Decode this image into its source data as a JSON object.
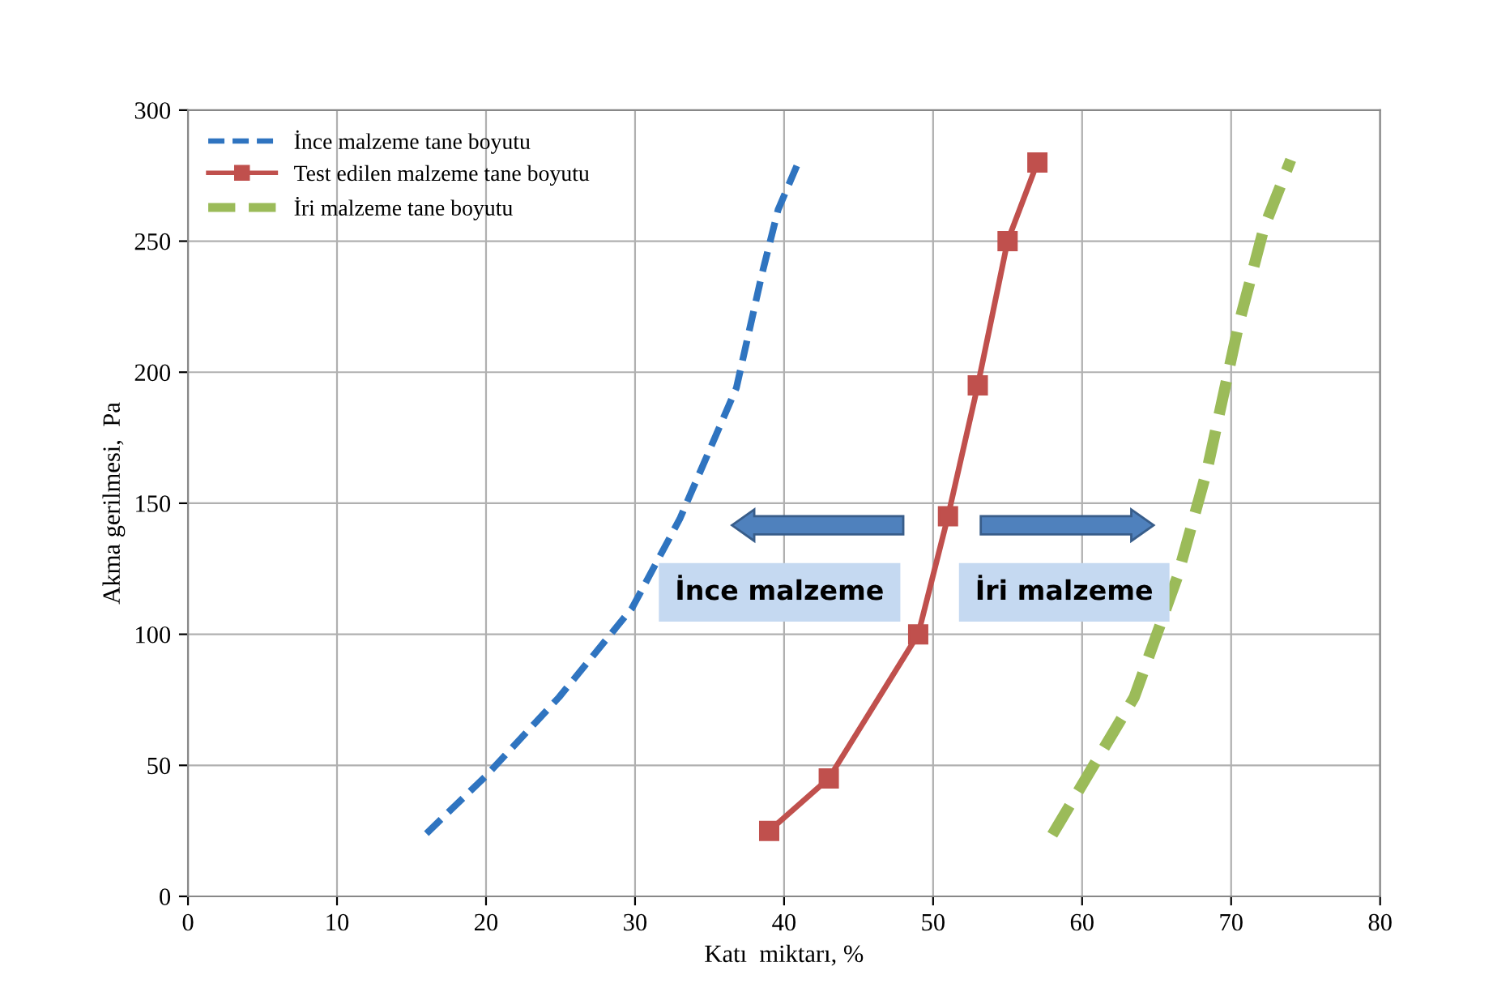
{
  "chart_data": {
    "type": "line",
    "xlabel": "Katı  miktarı, %",
    "ylabel": "Akma gerilmesi,  Pa",
    "xlim": [
      0,
      80
    ],
    "ylim": [
      0,
      300
    ],
    "xticks": [
      0,
      10,
      20,
      30,
      40,
      50,
      60,
      70,
      80
    ],
    "yticks": [
      0,
      50,
      100,
      150,
      200,
      250,
      300
    ],
    "grid": true,
    "legend": "top left",
    "series": [
      {
        "name": "İnce malzeme tane boyutu",
        "color": "#2f74c0",
        "line_style": "dashed",
        "marker": "none",
        "x": [
          16,
          20,
          24.9,
          29.8,
          33,
          36.8,
          38.5,
          39.6,
          41.1
        ],
        "values": [
          24,
          46,
          76,
          110,
          144,
          194,
          237,
          262,
          282
        ]
      },
      {
        "name": "Test edilen malzeme tane boyutu",
        "color": "#c0504d",
        "line_style": "solid",
        "marker": "square",
        "x": [
          39,
          43,
          49,
          51,
          53,
          55,
          57
        ],
        "values": [
          25,
          45,
          100,
          145,
          195,
          250,
          280
        ]
      },
      {
        "name": "İri malzeme tane boyutu",
        "color": "#9bbb59",
        "line_style": "dashed",
        "marker": "none",
        "x": [
          58,
          63.5,
          66.4,
          68.4,
          70.5,
          72.2,
          74
        ],
        "values": [
          23.5,
          76,
          122,
          163,
          218,
          255,
          281
        ]
      }
    ],
    "annotations": [
      "İnce malzeme",
      "İri malzeme"
    ]
  }
}
